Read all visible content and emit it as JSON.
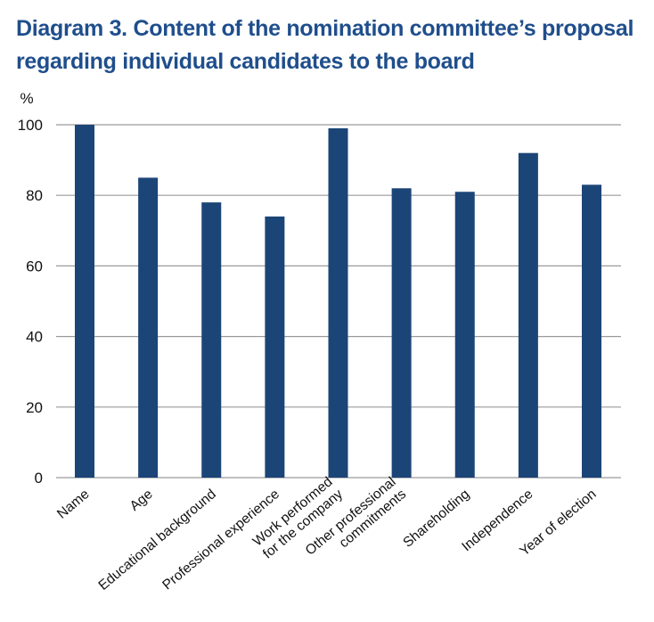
{
  "title": {
    "line1": "Diagram 3. Content of the nomination committee’s proposal",
    "line2": "regarding individual candidates to the board"
  },
  "colors": {
    "bar": "#1c4577",
    "grid": "#9a9a9a",
    "title": "#1f4e8c"
  },
  "chart_data": {
    "type": "bar",
    "ylabel": "%",
    "ylim": [
      0,
      100
    ],
    "yticks": [
      0,
      20,
      40,
      60,
      80,
      100
    ],
    "grid": true,
    "categories": [
      "Name",
      "Age",
      "Educational background",
      "Professional experience",
      "Work performed\nfor the company",
      "Other professional\ncommitments",
      "Shareholding",
      "Independence",
      "Year of election"
    ],
    "values": [
      100,
      85,
      78,
      74,
      99,
      82,
      81,
      92,
      83
    ]
  }
}
